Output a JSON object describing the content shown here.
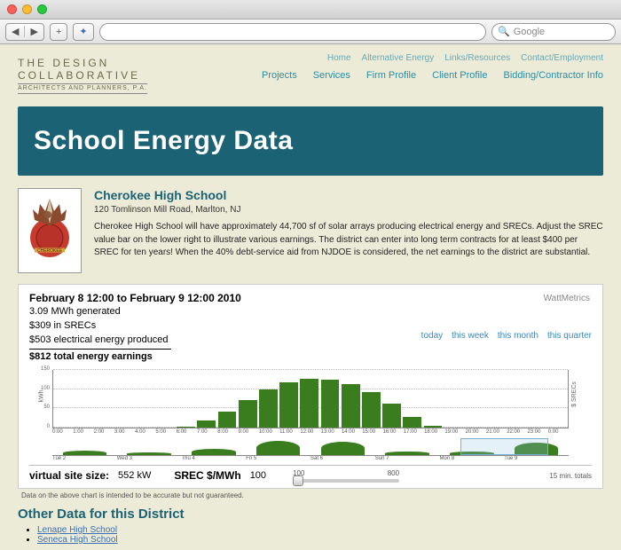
{
  "browser": {
    "search_placeholder": "Google",
    "search_icon": "🔍"
  },
  "logo": {
    "line1": "THE  DESIGN",
    "line2": "COLLABORATIVE",
    "line3": "ARCHITECTS AND PLANNERS, P.A."
  },
  "nav": {
    "row1": [
      "Home",
      "Alternative Energy",
      "Links/Resources",
      "Contact/Employment"
    ],
    "row2": [
      "Projects",
      "Services",
      "Firm Profile",
      "Client Profile",
      "Bidding/Contractor Info"
    ]
  },
  "banner": "School Energy Data",
  "school": {
    "name": "Cherokee High School",
    "address": "120 Tomlinson Mill Road, Marlton, NJ",
    "desc": "Cherokee High School will have approximately 44,700 sf of solar arrays producing electrical energy and SRECs. Adjust the SREC value bar on the lower right to illustrate various earnings. The district can enter into long term contracts for at least $400 per SREC for ten years! When the 40% debt-service aid from NJDOE is considered, the net earnings to the district are substantial."
  },
  "chart": {
    "brand": "WattMetrics",
    "range": "February 8 12:00 to February 9 12:00 2010",
    "stat1": "3.09 MWh generated",
    "stat2": "$309 in SRECs",
    "stat3": "$503 electrical energy produced",
    "stat4": "$812 total energy earnings",
    "links": [
      "today",
      "this week",
      "this month",
      "this quarter"
    ],
    "type": "bar",
    "ylim": [
      0,
      150
    ],
    "yticks": [
      0,
      50,
      100,
      150
    ],
    "ylabel": "kWh",
    "ylabel_right": "$ SRECs",
    "bar_color": "#3a7d1f",
    "background": "#ffffff",
    "grid_color": "#bbbbbb",
    "hours": [
      "0:00",
      "1:00",
      "2:00",
      "3:00",
      "4:00",
      "5:00",
      "6:00",
      "7:00",
      "8:00",
      "9:00",
      "10:00",
      "11:00",
      "12:00",
      "13:00",
      "14:00",
      "15:00",
      "16:00",
      "17:00",
      "18:00",
      "19:00",
      "20:00",
      "21:00",
      "22:00",
      "23:00",
      "0:00"
    ],
    "values": [
      0,
      0,
      0,
      0,
      0,
      0,
      3,
      18,
      42,
      72,
      98,
      118,
      126,
      124,
      112,
      92,
      62,
      28,
      5,
      0,
      0,
      0,
      0,
      0,
      0
    ],
    "mini_days": [
      "Tue 2",
      "Wed 3",
      "Thu 4",
      "Fri 5",
      "Sat 6",
      "Sun 7",
      "Mon 8",
      "Tue 9"
    ],
    "mini_values": [
      4,
      2,
      5,
      12,
      11,
      3,
      3,
      10
    ],
    "mini_label": "15 min. totals",
    "vss_label": "virtual site size:",
    "vss_value": "552 kW",
    "srec_label": "SREC $/MWh",
    "srec_value": "100",
    "slider_min": "100",
    "slider_max": "800"
  },
  "note": "Data on the above chart is intended to be accurate but not guaranteed.",
  "other": {
    "title": "Other Data for this District",
    "items": [
      "Lenape High School",
      "Seneca High School"
    ]
  }
}
